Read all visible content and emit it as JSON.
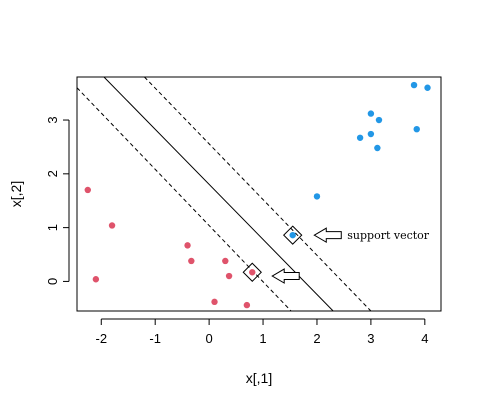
{
  "chart_data": {
    "type": "scatter",
    "title": "",
    "xlabel": "x[,1]",
    "ylabel": "x[,2]",
    "xlim": [
      -2.45,
      4.3
    ],
    "ylim": [
      -0.55,
      3.8
    ],
    "x_ticks": [
      -2,
      -1,
      0,
      1,
      2,
      3,
      4
    ],
    "y_ticks": [
      0,
      1,
      2,
      3
    ],
    "grid": false,
    "series": [
      {
        "color": "#DF536B",
        "points": [
          {
            "x": -2.25,
            "y": 1.7
          },
          {
            "x": -1.8,
            "y": 1.04
          },
          {
            "x": -2.1,
            "y": 0.04
          },
          {
            "x": -0.4,
            "y": 0.67
          },
          {
            "x": -0.33,
            "y": 0.38
          },
          {
            "x": 0.3,
            "y": 0.38
          },
          {
            "x": 0.37,
            "y": 0.1
          },
          {
            "x": 0.8,
            "y": 0.17
          },
          {
            "x": 0.1,
            "y": -0.38
          },
          {
            "x": 0.7,
            "y": -0.44
          }
        ]
      },
      {
        "color": "#2297E6",
        "points": [
          {
            "x": 1.55,
            "y": 0.86
          },
          {
            "x": 2.0,
            "y": 1.58
          },
          {
            "x": 2.8,
            "y": 2.67
          },
          {
            "x": 3.0,
            "y": 2.74
          },
          {
            "x": 3.0,
            "y": 3.12
          },
          {
            "x": 3.15,
            "y": 3.0
          },
          {
            "x": 3.12,
            "y": 2.48
          },
          {
            "x": 3.85,
            "y": 2.83
          },
          {
            "x": 3.8,
            "y": 3.65
          },
          {
            "x": 4.05,
            "y": 3.6
          }
        ]
      }
    ],
    "lines": [
      {
        "style": "solid",
        "x1": -1.95,
        "y1": 3.8,
        "x2": 2.3,
        "y2": -0.55
      },
      {
        "style": "dashed",
        "x1": -2.45,
        "y1": 3.6,
        "x2": 1.52,
        "y2": -0.55
      },
      {
        "style": "dashed",
        "x1": -1.2,
        "y1": 3.8,
        "x2": 3.0,
        "y2": -0.55
      }
    ],
    "support_vectors": [
      {
        "x": 1.55,
        "y": 0.86
      },
      {
        "x": 0.8,
        "y": 0.17
      }
    ],
    "annotations": [
      {
        "text": "support vector",
        "arrow_tip": {
          "x": 1.95,
          "y": 0.86
        }
      },
      {
        "text": "",
        "arrow_tip": {
          "x": 1.17,
          "y": 0.1
        }
      }
    ]
  }
}
